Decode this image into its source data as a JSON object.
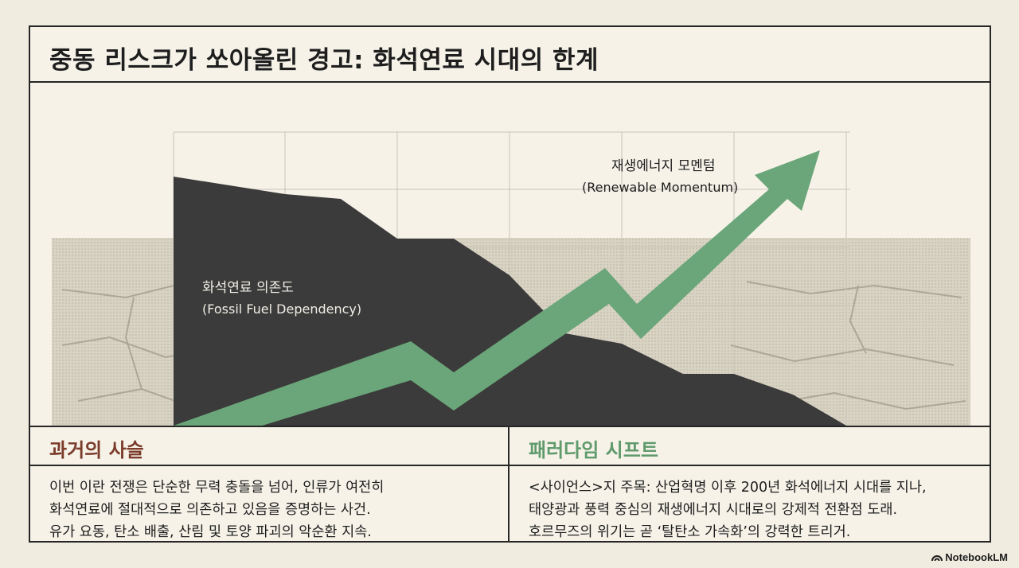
{
  "title": "중동 리스크가 쏘아올린 경고: 화석연료 시대의 한계",
  "chart": {
    "fossil_label_ko": "화석연료 의존도",
    "fossil_label_en": "(Fossil Fuel Dependency)",
    "renewable_label_ko": "재생에너지 모멘텀",
    "renewable_label_en": "(Renewable Momentum)",
    "colors": {
      "fossil": "#3b3b3b",
      "renewable": "#6aa679",
      "grid": "#c9c4b8"
    }
  },
  "left_panel": {
    "heading": "과거의 사슬",
    "lines": [
      "이번 이란 전쟁은 단순한 무력 충돌을 넘어, 인류가 여전히",
      "화석연료에 절대적으로 의존하고 있음을 증명하는 사건.",
      "유가 요동, 탄소 배출, 산림 및 토양 파괴의 악순환 지속."
    ]
  },
  "right_panel": {
    "heading": "패러다임 시프트",
    "lines": [
      "<사이언스>지 주목: 산업혁명 이후 200년 화석에너지 시대를 지나,",
      "태양광과 풍력 중심의 재생에너지 시대로의 강제적 전환점 도래.",
      "호르무즈의 위기는 곧 ‘탈탄소 가속화’의 강력한 트리거."
    ]
  },
  "brand": "NotebookLM"
}
